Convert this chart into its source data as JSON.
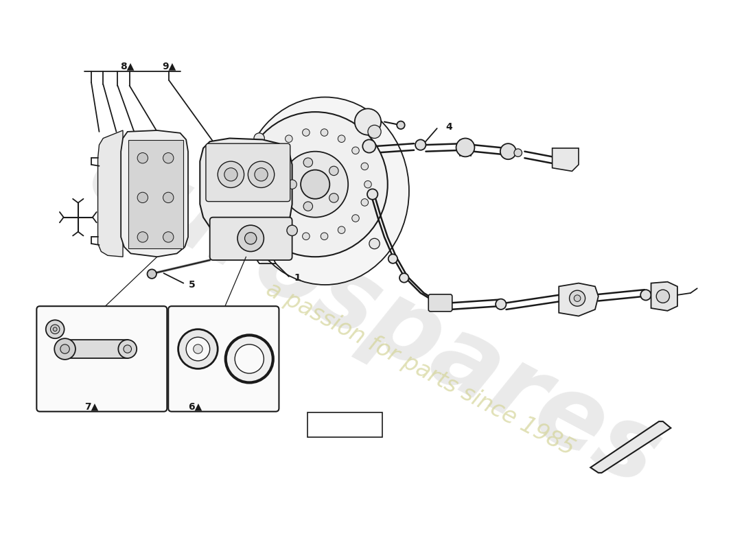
{
  "bg": "#ffffff",
  "lc": "#1a1a1a",
  "wm1_color": "#c8c8c8",
  "wm2_color": "#d4d498",
  "lw": 1.3
}
